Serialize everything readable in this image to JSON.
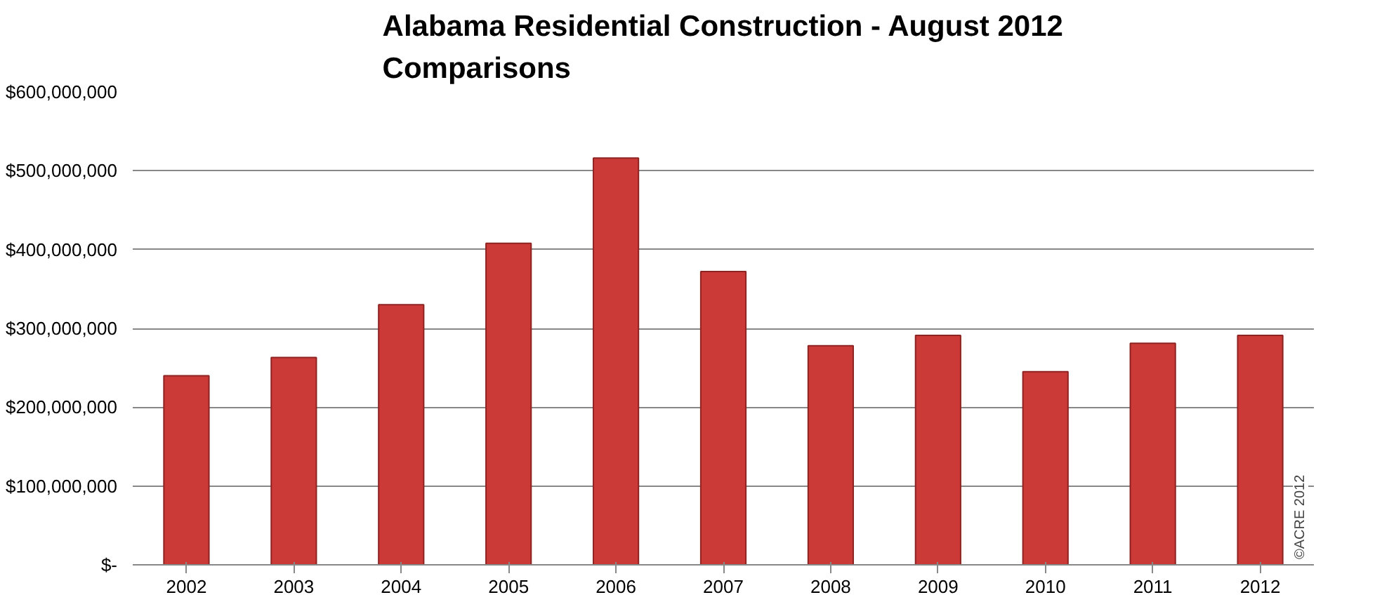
{
  "chart_data": {
    "type": "bar",
    "title": "Alabama Residential Construction - August 2012\nComparisons",
    "categories": [
      "2002",
      "2003",
      "2004",
      "2005",
      "2006",
      "2007",
      "2008",
      "2009",
      "2010",
      "2011",
      "2012"
    ],
    "values": [
      240000000,
      263000000,
      330000000,
      408000000,
      516000000,
      372000000,
      278000000,
      291000000,
      245000000,
      281000000,
      291000000
    ],
    "color": "#cc3a38",
    "ylim": [
      0,
      600000000
    ],
    "yticks": [
      {
        "value": 0,
        "label": "$-"
      },
      {
        "value": 100000000,
        "label": "$100,000,000"
      },
      {
        "value": 200000000,
        "label": "$200,000,000"
      },
      {
        "value": 300000000,
        "label": "$300,000,000"
      },
      {
        "value": 400000000,
        "label": "$400,000,000"
      },
      {
        "value": 500000000,
        "label": "$500,000,000"
      },
      {
        "value": 600000000,
        "label": "$600,000,000"
      }
    ],
    "grid": "y",
    "annotations": [
      "©ACRE 2012"
    ]
  }
}
